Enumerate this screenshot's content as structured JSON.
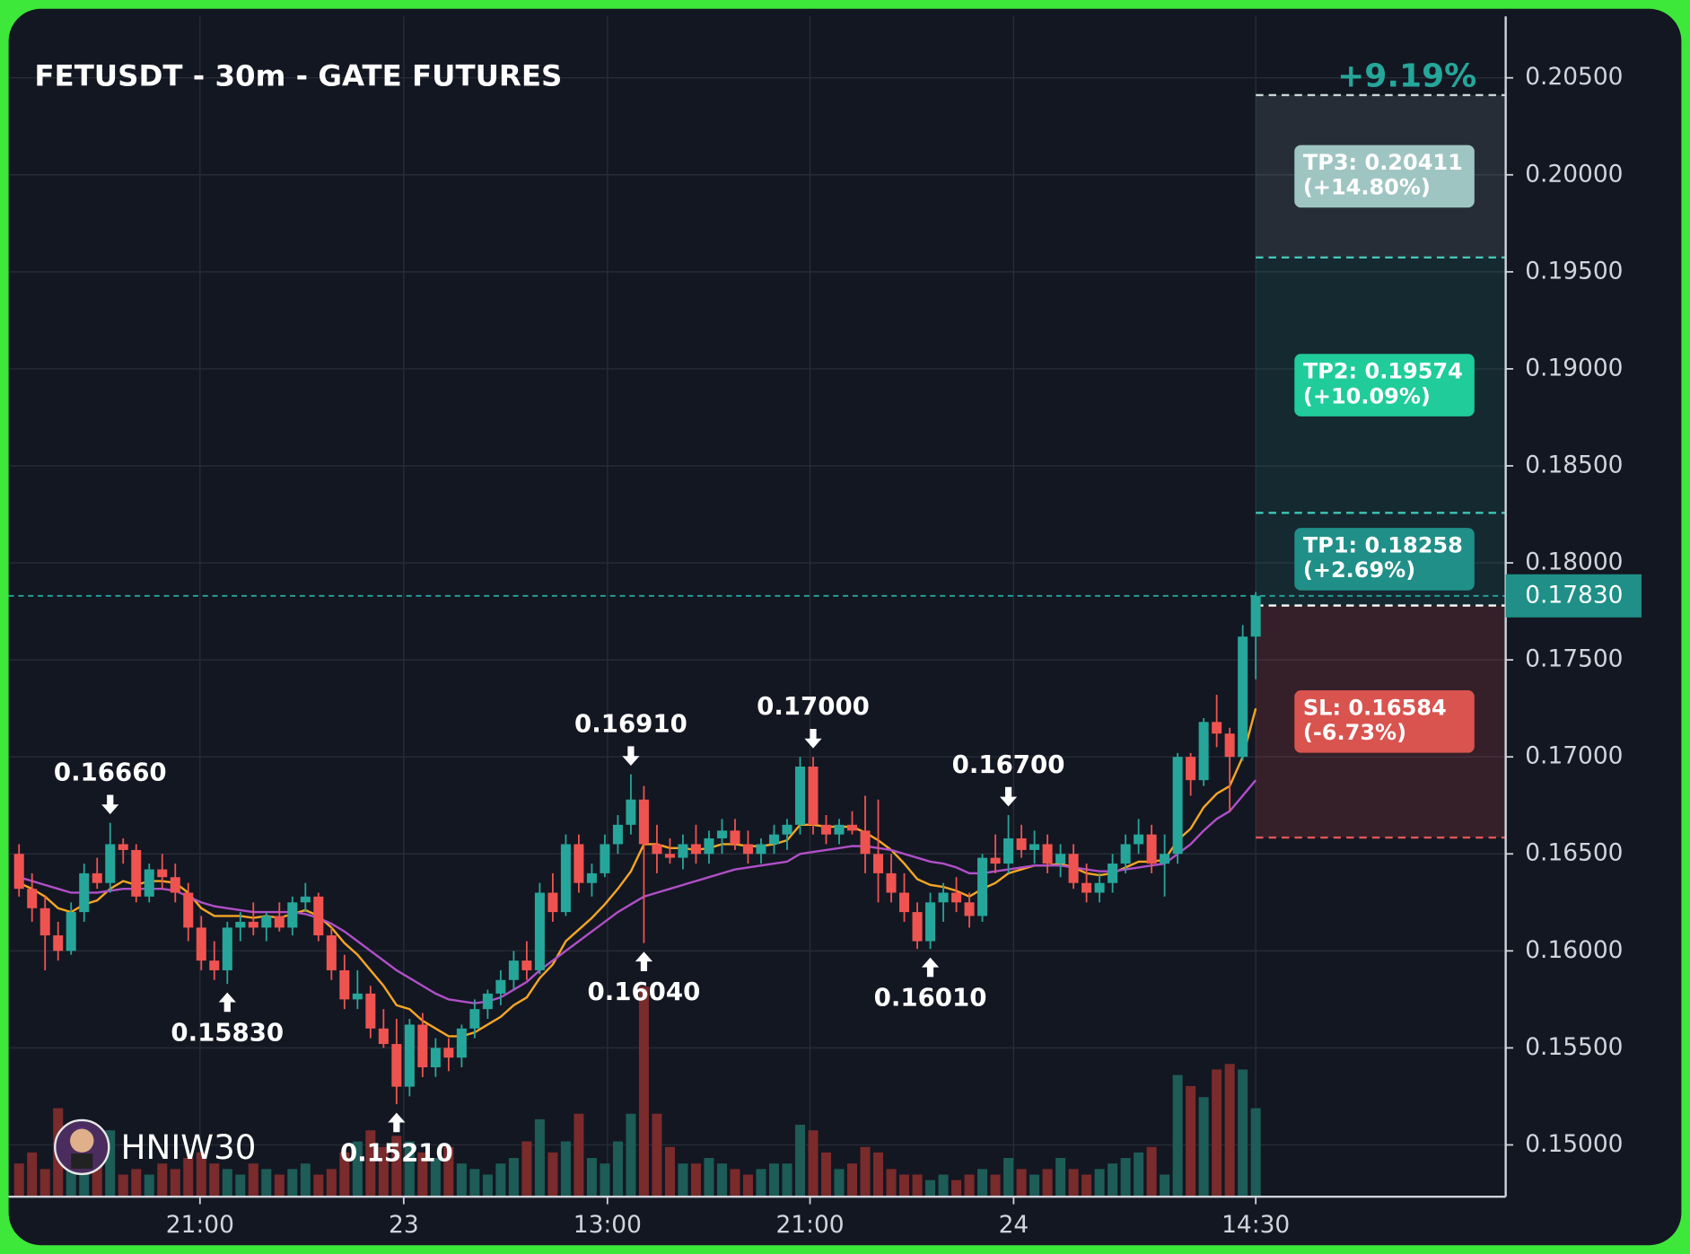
{
  "chart_data": {
    "type": "candlestick",
    "title": "FETUSDT - 30m - GATE FUTURES",
    "watermark": "HNIW30",
    "up_color": "#26a69a",
    "down_color": "#ef5350",
    "volume_up_color": "#1d5c57",
    "volume_down_color": "#7a2b2b",
    "grid": true,
    "xlim": [
      -0.8,
      114.2
    ],
    "xticks": [
      {
        "value": 13.9,
        "label": "21:00"
      },
      {
        "value": 29.55,
        "label": "23"
      },
      {
        "value": 45.2,
        "label": "13:00"
      },
      {
        "value": 60.76,
        "label": "21:00"
      },
      {
        "value": 76.4,
        "label": "24"
      },
      {
        "value": 95,
        "label": "14:30"
      }
    ],
    "ylim": [
      0.14733,
      0.20817
    ],
    "yticks": [
      {
        "value": 0.205,
        "label": "0.20500"
      },
      {
        "value": 0.2,
        "label": "0.20000"
      },
      {
        "value": 0.195,
        "label": "0.19500"
      },
      {
        "value": 0.19,
        "label": "0.19000"
      },
      {
        "value": 0.185,
        "label": "0.18500"
      },
      {
        "value": 0.18,
        "label": "0.18000"
      },
      {
        "value": 0.175,
        "label": "0.17500"
      },
      {
        "value": 0.17,
        "label": "0.17000"
      },
      {
        "value": 0.165,
        "label": "0.16500"
      },
      {
        "value": 0.16,
        "label": "0.16000"
      },
      {
        "value": 0.155,
        "label": "0.15500"
      },
      {
        "value": 0.15,
        "label": "0.15000"
      }
    ],
    "open": [
      0.165,
      0.1632,
      0.1622,
      0.1608,
      0.16,
      0.162,
      0.164,
      0.1635,
      0.1655,
      0.1652,
      0.1628,
      0.1642,
      0.1638,
      0.163,
      0.1612,
      0.1595,
      0.159,
      0.1612,
      0.1615,
      0.1612,
      0.1618,
      0.1612,
      0.1625,
      0.1628,
      0.1608,
      0.159,
      0.1575,
      0.1578,
      0.156,
      0.1552,
      0.153,
      0.1562,
      0.154,
      0.155,
      0.1545,
      0.156,
      0.157,
      0.1578,
      0.1585,
      0.1595,
      0.159,
      0.163,
      0.162,
      0.1655,
      0.1635,
      0.164,
      0.1655,
      0.1665,
      0.1678,
      0.1655,
      0.165,
      0.1648,
      0.1655,
      0.165,
      0.1658,
      0.1662,
      0.1655,
      0.165,
      0.1655,
      0.166,
      0.1665,
      0.1695,
      0.1665,
      0.166,
      0.1665,
      0.1662,
      0.165,
      0.164,
      0.163,
      0.162,
      0.1605,
      0.1625,
      0.163,
      0.1625,
      0.1618,
      0.1648,
      0.1645,
      0.1658,
      0.1652,
      0.1655,
      0.1645,
      0.165,
      0.1635,
      0.163,
      0.1635,
      0.1645,
      0.1655,
      0.166,
      0.1645,
      0.165,
      0.17,
      0.1688,
      0.1718,
      0.1712,
      0.17,
      0.1762
    ],
    "high": [
      0.1655,
      0.164,
      0.1628,
      0.1615,
      0.1625,
      0.1645,
      0.1648,
      0.1666,
      0.1658,
      0.1655,
      0.1645,
      0.165,
      0.1645,
      0.1635,
      0.1618,
      0.1605,
      0.1615,
      0.162,
      0.1625,
      0.162,
      0.1625,
      0.1628,
      0.1635,
      0.163,
      0.1612,
      0.1598,
      0.159,
      0.1582,
      0.157,
      0.1565,
      0.1565,
      0.1568,
      0.1555,
      0.1555,
      0.1562,
      0.1575,
      0.158,
      0.159,
      0.16,
      0.1605,
      0.1635,
      0.164,
      0.166,
      0.166,
      0.1645,
      0.166,
      0.167,
      0.1691,
      0.1685,
      0.1665,
      0.1658,
      0.166,
      0.1665,
      0.1662,
      0.1668,
      0.1668,
      0.1662,
      0.1658,
      0.1665,
      0.1668,
      0.17,
      0.17,
      0.167,
      0.1668,
      0.1672,
      0.168,
      0.1678,
      0.165,
      0.164,
      0.1625,
      0.163,
      0.1635,
      0.1638,
      0.163,
      0.165,
      0.166,
      0.167,
      0.1665,
      0.1662,
      0.166,
      0.1655,
      0.1655,
      0.1645,
      0.164,
      0.165,
      0.166,
      0.1668,
      0.1665,
      0.166,
      0.1702,
      0.1702,
      0.172,
      0.1732,
      0.1715,
      0.1768,
      0.1785
    ],
    "low": [
      0.1628,
      0.1615,
      0.159,
      0.1595,
      0.1598,
      0.1615,
      0.1632,
      0.163,
      0.1645,
      0.1625,
      0.1625,
      0.1632,
      0.1625,
      0.1605,
      0.159,
      0.1585,
      0.1583,
      0.1605,
      0.1608,
      0.1605,
      0.161,
      0.1608,
      0.162,
      0.1605,
      0.1585,
      0.157,
      0.157,
      0.1555,
      0.155,
      0.1521,
      0.1525,
      0.1535,
      0.1535,
      0.1538,
      0.154,
      0.1555,
      0.1565,
      0.1572,
      0.158,
      0.1585,
      0.1588,
      0.1615,
      0.1618,
      0.163,
      0.1628,
      0.1638,
      0.165,
      0.166,
      0.1604,
      0.164,
      0.1645,
      0.1642,
      0.1645,
      0.1645,
      0.165,
      0.1652,
      0.1645,
      0.1645,
      0.165,
      0.1652,
      0.166,
      0.166,
      0.1655,
      0.1655,
      0.166,
      0.164,
      0.1625,
      0.1625,
      0.1615,
      0.1601,
      0.1601,
      0.1615,
      0.162,
      0.1612,
      0.1615,
      0.164,
      0.164,
      0.1648,
      0.1645,
      0.164,
      0.1638,
      0.1632,
      0.1625,
      0.1625,
      0.163,
      0.164,
      0.165,
      0.164,
      0.1628,
      0.1645,
      0.168,
      0.1685,
      0.1705,
      0.1672,
      0.1698,
      0.174
    ],
    "close": [
      0.1632,
      0.1622,
      0.1608,
      0.16,
      0.162,
      0.164,
      0.1635,
      0.1655,
      0.1652,
      0.1628,
      0.1642,
      0.1638,
      0.163,
      0.1612,
      0.1595,
      0.159,
      0.1612,
      0.1615,
      0.1612,
      0.1618,
      0.1612,
      0.1625,
      0.1628,
      0.1608,
      0.159,
      0.1575,
      0.1578,
      0.156,
      0.1552,
      0.153,
      0.1562,
      0.154,
      0.155,
      0.1545,
      0.156,
      0.157,
      0.1578,
      0.1585,
      0.1595,
      0.159,
      0.163,
      0.162,
      0.1655,
      0.1635,
      0.164,
      0.1655,
      0.1665,
      0.1678,
      0.1655,
      0.165,
      0.1648,
      0.1655,
      0.165,
      0.1658,
      0.1662,
      0.1655,
      0.165,
      0.1655,
      0.166,
      0.1665,
      0.1695,
      0.1665,
      0.166,
      0.1665,
      0.1662,
      0.165,
      0.164,
      0.163,
      0.162,
      0.1605,
      0.1625,
      0.163,
      0.1625,
      0.1618,
      0.1648,
      0.1645,
      0.1658,
      0.1652,
      0.1655,
      0.1645,
      0.165,
      0.1635,
      0.163,
      0.1635,
      0.1645,
      0.1655,
      0.166,
      0.1645,
      0.165,
      0.17,
      0.1688,
      0.1718,
      0.1712,
      0.17,
      0.1762,
      0.1783
    ],
    "volume": [
      30,
      40,
      25,
      80,
      35,
      45,
      30,
      60,
      20,
      25,
      20,
      30,
      25,
      35,
      40,
      30,
      25,
      20,
      30,
      25,
      20,
      25,
      30,
      20,
      25,
      40,
      50,
      60,
      45,
      55,
      50,
      40,
      35,
      45,
      30,
      25,
      20,
      30,
      35,
      50,
      70,
      40,
      50,
      75,
      35,
      30,
      50,
      75,
      190,
      75,
      45,
      30,
      30,
      35,
      30,
      25,
      20,
      25,
      30,
      30,
      65,
      60,
      40,
      25,
      30,
      45,
      40,
      25,
      20,
      20,
      15,
      20,
      15,
      20,
      25,
      20,
      35,
      25,
      20,
      25,
      35,
      25,
      20,
      25,
      30,
      35,
      40,
      45,
      20,
      110,
      100,
      90,
      115,
      120,
      115,
      80
    ],
    "ma_lines": [
      {
        "color": "#f5a623",
        "values": [
          0.1635,
          0.1632,
          0.1628,
          0.1622,
          0.162,
          0.1624,
          0.1626,
          0.1632,
          0.1636,
          0.1634,
          0.1636,
          0.1636,
          0.1635,
          0.163,
          0.1622,
          0.1618,
          0.1618,
          0.1618,
          0.1617,
          0.1618,
          0.1617,
          0.1619,
          0.1621,
          0.1618,
          0.1612,
          0.1604,
          0.1598,
          0.159,
          0.1582,
          0.1572,
          0.157,
          0.1564,
          0.156,
          0.1556,
          0.1556,
          0.1558,
          0.1562,
          0.1566,
          0.1572,
          0.1576,
          0.1586,
          0.1593,
          0.1605,
          0.1611,
          0.1617,
          0.1624,
          0.1632,
          0.1641,
          0.1655,
          0.1655,
          0.1653,
          0.1653,
          0.1652,
          0.1653,
          0.1655,
          0.1655,
          0.1654,
          0.1654,
          0.1655,
          0.1657,
          0.1665,
          0.1665,
          0.1664,
          0.1664,
          0.1664,
          0.1661,
          0.1657,
          0.1652,
          0.1645,
          0.1637,
          0.1634,
          0.1633,
          0.1631,
          0.1628,
          0.1632,
          0.1635,
          0.164,
          0.1642,
          0.1644,
          0.1644,
          0.1645,
          0.1643,
          0.164,
          0.1639,
          0.164,
          0.1643,
          0.1646,
          0.1646,
          0.1647,
          0.1657,
          0.1663,
          0.1674,
          0.1681,
          0.1685,
          0.17,
          0.1725
        ]
      },
      {
        "color": "#b04fc8",
        "values": [
          0.1638,
          0.1636,
          0.1634,
          0.1632,
          0.163,
          0.163,
          0.163,
          0.1631,
          0.1632,
          0.1632,
          0.1632,
          0.1632,
          0.1631,
          0.1628,
          0.1625,
          0.1623,
          0.1622,
          0.1621,
          0.162,
          0.162,
          0.162,
          0.162,
          0.1619,
          0.1617,
          0.1614,
          0.161,
          0.1605,
          0.16,
          0.1595,
          0.159,
          0.1586,
          0.1582,
          0.1578,
          0.1575,
          0.1574,
          0.1573,
          0.1574,
          0.1576,
          0.158,
          0.1584,
          0.159,
          0.1595,
          0.16,
          0.1605,
          0.161,
          0.1615,
          0.162,
          0.1624,
          0.1628,
          0.163,
          0.1632,
          0.1634,
          0.1636,
          0.1638,
          0.164,
          0.1642,
          0.1643,
          0.1644,
          0.1645,
          0.1646,
          0.165,
          0.1651,
          0.1652,
          0.1653,
          0.1654,
          0.1654,
          0.1653,
          0.1652,
          0.165,
          0.1648,
          0.1646,
          0.1645,
          0.1643,
          0.164,
          0.164,
          0.1641,
          0.1642,
          0.1643,
          0.1644,
          0.1644,
          0.1644,
          0.1643,
          0.1642,
          0.1641,
          0.1641,
          0.1642,
          0.1643,
          0.1644,
          0.1645,
          0.165,
          0.1655,
          0.1662,
          0.1668,
          0.1672,
          0.168,
          0.1688
        ]
      }
    ],
    "annotations": [
      {
        "index": 7,
        "side": "high",
        "value": 0.1666,
        "label": "0.16660"
      },
      {
        "index": 16,
        "side": "low",
        "value": 0.1583,
        "label": "0.15830"
      },
      {
        "index": 29,
        "side": "low",
        "value": 0.1521,
        "label": "0.15210"
      },
      {
        "index": 47,
        "side": "high",
        "value": 0.1691,
        "label": "0.16910"
      },
      {
        "index": 48,
        "side": "low",
        "value": 0.1604,
        "label": "0.16040"
      },
      {
        "index": 61,
        "side": "high",
        "value": 0.17,
        "label": "0.17000"
      },
      {
        "index": 70,
        "side": "low",
        "value": 0.1601,
        "label": "0.16010"
      },
      {
        "index": 76,
        "side": "high",
        "value": 0.167,
        "label": "0.16700"
      }
    ],
    "last_price": {
      "value": 0.1783,
      "label": "0.17830",
      "color": "#1f8f88"
    },
    "trade": {
      "entry": 0.1778,
      "start_index": 95,
      "pnl_label": "+9.19%",
      "targets": [
        {
          "label": "TP1: 0.18258",
          "change": "(+2.69%)",
          "value": 0.18258,
          "color": "#1f8f88"
        },
        {
          "label": "TP2: 0.19574",
          "change": "(+10.09%)",
          "value": 0.19574,
          "color": "#1fcc9a"
        },
        {
          "label": "TP3: 0.20411",
          "change": "(+14.80%)",
          "value": 0.20411,
          "color": "#9fc5c2"
        }
      ],
      "stop": {
        "label": "SL: 0.16584",
        "change": "(-6.73%)",
        "value": 0.16584,
        "color": "#d9534f"
      }
    }
  }
}
